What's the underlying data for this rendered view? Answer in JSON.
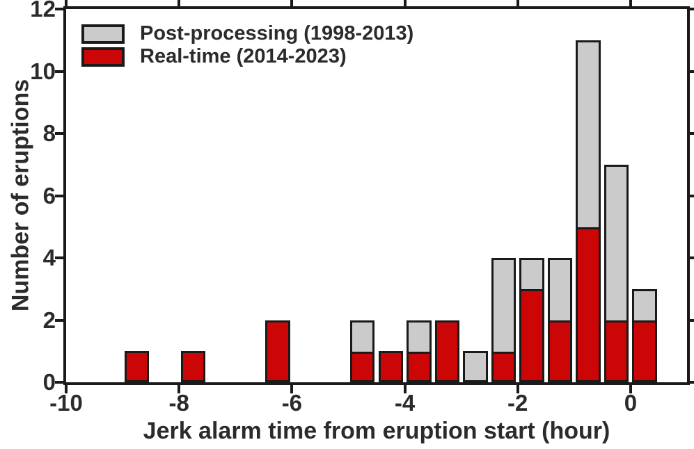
{
  "figure": {
    "background": "#ffffff",
    "axis_color": "#1a1a1a",
    "text_color": "#2b2b2b"
  },
  "chart_data": {
    "type": "bar",
    "stacked": true,
    "xlabel": "Jerk alarm time from eruption start (hour)",
    "ylabel": "Number of eruptions",
    "xlim": [
      -10,
      1
    ],
    "ylim": [
      0,
      12
    ],
    "x_ticks": [
      "-10",
      "-8",
      "-6",
      "-4",
      "-2",
      "0"
    ],
    "x_tick_values": [
      -10,
      -8,
      -6,
      -4,
      -2,
      0
    ],
    "y_ticks": [
      "0",
      "2",
      "4",
      "6",
      "8",
      "10",
      "12"
    ],
    "y_tick_values": [
      0,
      2,
      4,
      6,
      8,
      10,
      12
    ],
    "grid": false,
    "legend_position": "top-left",
    "bin_width_hours": 0.5,
    "series": [
      {
        "name": "Post-processing (1998-2013)",
        "color": "#cbcbcb"
      },
      {
        "name": "Real-time (2014-2023)",
        "color": "#cc0606"
      }
    ],
    "bins": [
      {
        "start": -9.0,
        "end": -8.5,
        "real_time": 1,
        "post_processing": 0
      },
      {
        "start": -8.0,
        "end": -7.5,
        "real_time": 1,
        "post_processing": 0
      },
      {
        "start": -6.5,
        "end": -6.0,
        "real_time": 2,
        "post_processing": 0
      },
      {
        "start": -5.0,
        "end": -4.5,
        "real_time": 1,
        "post_processing": 1
      },
      {
        "start": -4.5,
        "end": -4.0,
        "real_time": 1,
        "post_processing": 0
      },
      {
        "start": -4.0,
        "end": -3.5,
        "real_time": 1,
        "post_processing": 1
      },
      {
        "start": -3.5,
        "end": -3.0,
        "real_time": 2,
        "post_processing": 0
      },
      {
        "start": -3.0,
        "end": -2.5,
        "real_time": 0,
        "post_processing": 1
      },
      {
        "start": -2.5,
        "end": -2.0,
        "real_time": 1,
        "post_processing": 3
      },
      {
        "start": -2.0,
        "end": -1.5,
        "real_time": 3,
        "post_processing": 1
      },
      {
        "start": -1.5,
        "end": -1.0,
        "real_time": 2,
        "post_processing": 2
      },
      {
        "start": -1.0,
        "end": -0.5,
        "real_time": 5,
        "post_processing": 6
      },
      {
        "start": -0.5,
        "end": 0.0,
        "real_time": 2,
        "post_processing": 5
      },
      {
        "start": 0.0,
        "end": 0.5,
        "real_time": 2,
        "post_processing": 1
      }
    ]
  },
  "legend": {
    "items": [
      {
        "label": "Post-processing (1998-2013)",
        "color": "#cbcbcb"
      },
      {
        "label": "Real-time (2014-2023)",
        "color": "#cc0606"
      }
    ]
  }
}
